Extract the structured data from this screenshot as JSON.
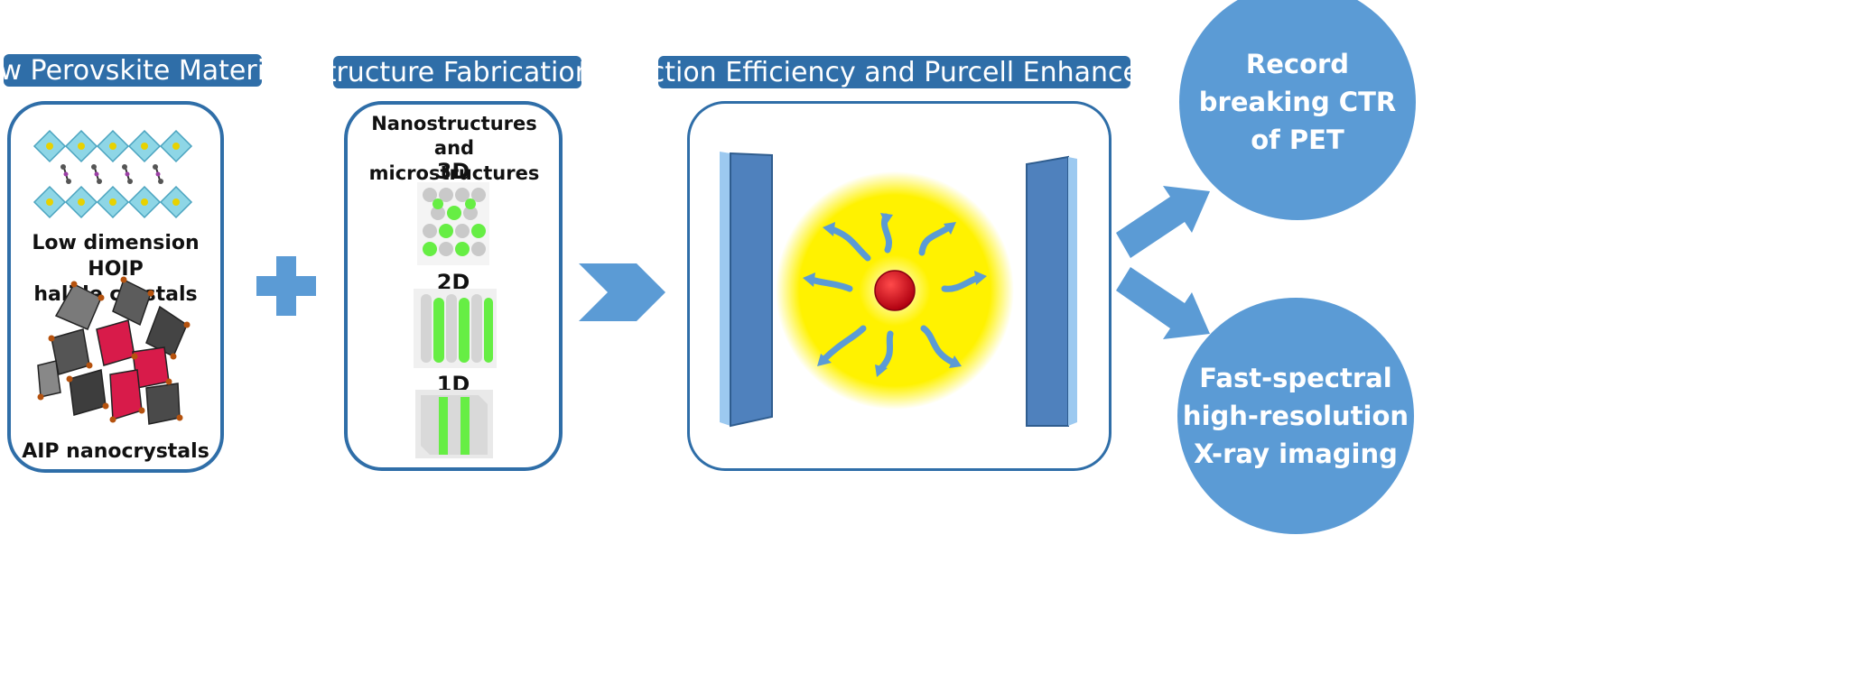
{
  "headers": {
    "materials": "New Perovskite Materials",
    "fabrication": "Structure Fabrications",
    "extraction": "Extraction Efficiency and Purcell Enhancement"
  },
  "materials_panel": {
    "hoip_label_line1": "Low dimension HOIP",
    "hoip_label_line2": "halide crystals",
    "aip_label": "AIP nanocrystals"
  },
  "fabrication_panel": {
    "title_line1": "Nanostructures",
    "title_line2": "and microstructures",
    "label_3d": "3D",
    "label_2d": "2D",
    "label_1d": "1D"
  },
  "outcomes": {
    "ctr_line1": "Record",
    "ctr_line2": "breaking CTR",
    "ctr_line3": "of PET",
    "xray_line1": "Fast-spectral",
    "xray_line2": "high-resolution",
    "xray_line3": "X-ray imaging"
  },
  "colors": {
    "header_fill": "#2f6ea8",
    "panel_border": "#2f6ea8",
    "arrow_fill": "#5b9bd5",
    "glow": "#fff200",
    "emitter": "#d0021b",
    "nanorod_green": "#66ee44"
  }
}
